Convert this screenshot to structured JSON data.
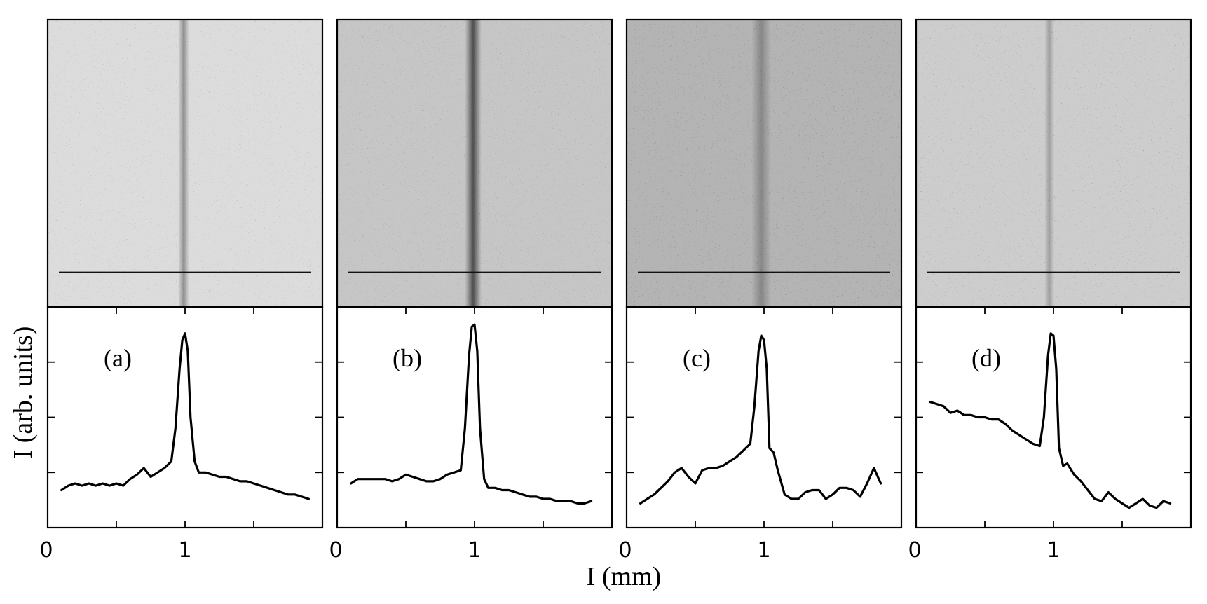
{
  "chart_data": {
    "type": "line",
    "xlabel": "I (mm)",
    "ylabel": "I (arb. units)",
    "xlim": [
      0,
      2
    ],
    "ylim": [
      0,
      1
    ],
    "x_tick_labels": [
      "0",
      "1"
    ],
    "grid": false,
    "panels": [
      {
        "label": "(a)",
        "image": {
          "background": "#dcdcdc",
          "noise": 0.22,
          "stripe_x": 0.99,
          "stripe_width": 0.04,
          "stripe_strength": 0.35,
          "cut_y": 0.88
        },
        "x": [
          0.1,
          0.15,
          0.2,
          0.25,
          0.3,
          0.35,
          0.4,
          0.45,
          0.5,
          0.55,
          0.6,
          0.65,
          0.7,
          0.75,
          0.8,
          0.85,
          0.9,
          0.93,
          0.96,
          0.98,
          1.0,
          1.02,
          1.04,
          1.07,
          1.1,
          1.15,
          1.2,
          1.25,
          1.3,
          1.35,
          1.4,
          1.45,
          1.5,
          1.55,
          1.6,
          1.65,
          1.7,
          1.75,
          1.8,
          1.85,
          1.9
        ],
        "y": [
          0.17,
          0.19,
          0.2,
          0.19,
          0.2,
          0.19,
          0.2,
          0.19,
          0.2,
          0.19,
          0.22,
          0.24,
          0.27,
          0.23,
          0.25,
          0.27,
          0.3,
          0.45,
          0.72,
          0.85,
          0.88,
          0.8,
          0.5,
          0.3,
          0.25,
          0.25,
          0.24,
          0.23,
          0.23,
          0.22,
          0.21,
          0.21,
          0.2,
          0.19,
          0.18,
          0.17,
          0.16,
          0.15,
          0.15,
          0.14,
          0.13
        ]
      },
      {
        "label": "(b)",
        "image": {
          "background": "#c6c6c6",
          "noise": 0.3,
          "stripe_x": 0.99,
          "stripe_width": 0.06,
          "stripe_strength": 0.6,
          "cut_y": 0.88
        },
        "x": [
          0.1,
          0.15,
          0.2,
          0.25,
          0.3,
          0.35,
          0.4,
          0.45,
          0.5,
          0.55,
          0.6,
          0.65,
          0.7,
          0.75,
          0.8,
          0.85,
          0.9,
          0.93,
          0.96,
          0.98,
          1.0,
          1.02,
          1.04,
          1.07,
          1.1,
          1.15,
          1.2,
          1.25,
          1.3,
          1.35,
          1.4,
          1.45,
          1.5,
          1.55,
          1.6,
          1.65,
          1.7,
          1.75,
          1.8,
          1.85
        ],
        "y": [
          0.2,
          0.22,
          0.22,
          0.22,
          0.22,
          0.22,
          0.21,
          0.22,
          0.24,
          0.23,
          0.22,
          0.21,
          0.21,
          0.22,
          0.24,
          0.25,
          0.26,
          0.45,
          0.78,
          0.91,
          0.92,
          0.8,
          0.45,
          0.22,
          0.18,
          0.18,
          0.17,
          0.17,
          0.16,
          0.15,
          0.14,
          0.14,
          0.13,
          0.13,
          0.12,
          0.12,
          0.12,
          0.11,
          0.11,
          0.12
        ]
      },
      {
        "label": "(c)",
        "image": {
          "background": "#b4b4b4",
          "noise": 0.42,
          "stripe_x": 0.98,
          "stripe_width": 0.07,
          "stripe_strength": 0.25,
          "cut_y": 0.88
        },
        "x": [
          0.1,
          0.15,
          0.2,
          0.25,
          0.3,
          0.35,
          0.4,
          0.45,
          0.5,
          0.55,
          0.6,
          0.65,
          0.7,
          0.75,
          0.8,
          0.85,
          0.9,
          0.93,
          0.96,
          0.98,
          1.0,
          1.02,
          1.04,
          1.07,
          1.1,
          1.15,
          1.2,
          1.25,
          1.3,
          1.35,
          1.4,
          1.45,
          1.5,
          1.55,
          1.6,
          1.65,
          1.7,
          1.75,
          1.8,
          1.85
        ],
        "y": [
          0.11,
          0.13,
          0.15,
          0.18,
          0.21,
          0.25,
          0.27,
          0.23,
          0.2,
          0.26,
          0.27,
          0.27,
          0.28,
          0.3,
          0.32,
          0.35,
          0.38,
          0.55,
          0.8,
          0.87,
          0.85,
          0.72,
          0.36,
          0.34,
          0.26,
          0.15,
          0.13,
          0.13,
          0.16,
          0.17,
          0.17,
          0.13,
          0.15,
          0.18,
          0.18,
          0.17,
          0.14,
          0.2,
          0.27,
          0.2
        ]
      },
      {
        "label": "(d)",
        "image": {
          "background": "#cdcdcd",
          "noise": 0.3,
          "stripe_x": 0.97,
          "stripe_width": 0.035,
          "stripe_strength": 0.22,
          "cut_y": 0.88
        },
        "x": [
          0.1,
          0.15,
          0.2,
          0.25,
          0.3,
          0.35,
          0.4,
          0.45,
          0.5,
          0.55,
          0.6,
          0.65,
          0.7,
          0.75,
          0.8,
          0.85,
          0.9,
          0.93,
          0.96,
          0.98,
          1.0,
          1.02,
          1.04,
          1.07,
          1.1,
          1.15,
          1.2,
          1.25,
          1.3,
          1.35,
          1.4,
          1.45,
          1.5,
          1.55,
          1.6,
          1.65,
          1.7,
          1.75,
          1.8,
          1.85
        ],
        "y": [
          0.57,
          0.56,
          0.55,
          0.52,
          0.53,
          0.51,
          0.51,
          0.5,
          0.5,
          0.49,
          0.49,
          0.47,
          0.44,
          0.42,
          0.4,
          0.38,
          0.37,
          0.5,
          0.78,
          0.88,
          0.87,
          0.72,
          0.36,
          0.28,
          0.29,
          0.24,
          0.21,
          0.17,
          0.13,
          0.12,
          0.16,
          0.13,
          0.11,
          0.09,
          0.11,
          0.13,
          0.1,
          0.09,
          0.12,
          0.11
        ]
      }
    ]
  }
}
